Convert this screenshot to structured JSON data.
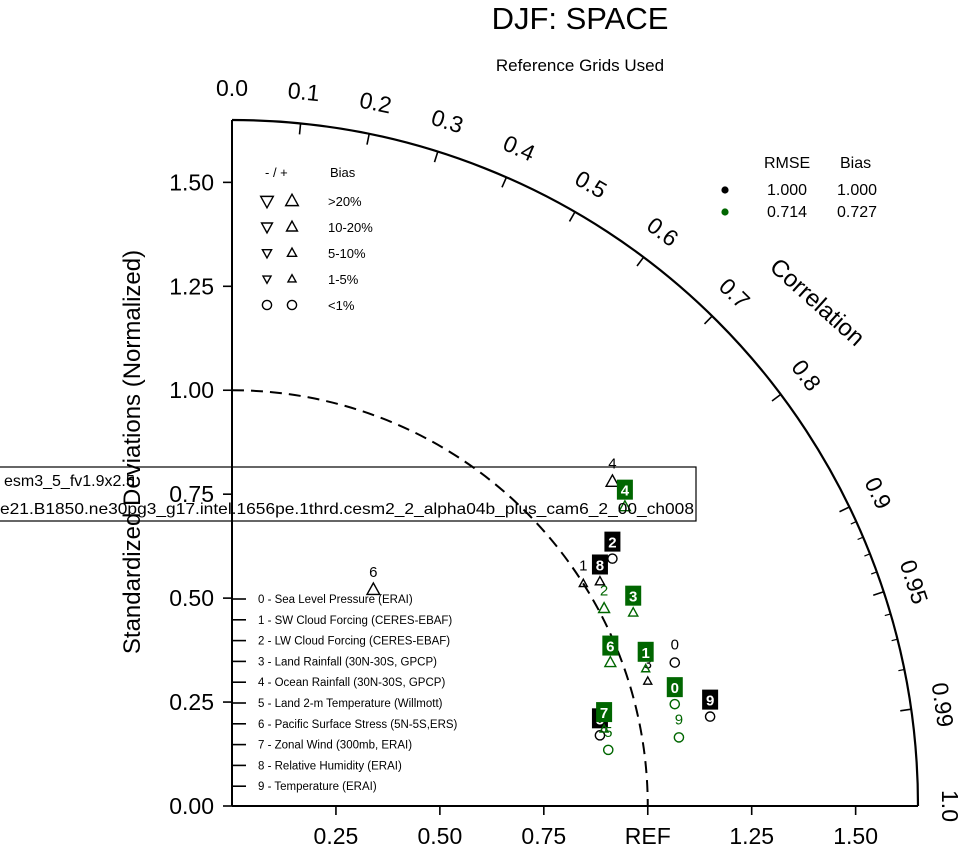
{
  "chart_data": {
    "type": "scatter",
    "title": "DJF: SPACE",
    "subtitle": "Reference Grids Used",
    "ylabel": "Standardized Deviations (Normalized)",
    "arc_label": "Correlation",
    "ref_label": "REF",
    "x_ticks": [
      "0.25",
      "0.50",
      "0.75",
      "REF",
      "1.25",
      "1.50"
    ],
    "y_ticks": [
      "0.00",
      "0.25",
      "0.50",
      "0.75",
      "1.00",
      "1.25",
      "1.50"
    ],
    "corr_ticks": [
      "0.0",
      "0.1",
      "0.2",
      "0.3",
      "0.4",
      "0.5",
      "0.6",
      "0.7",
      "0.8",
      "0.9",
      "0.95",
      "0.99",
      "1.0"
    ],
    "max_std": 1.65,
    "bias_legend": {
      "header_sign": "- / +",
      "header_bias": "Bias",
      "rows": [
        {
          "label": ">20%",
          "size": 5
        },
        {
          "label": "10-20%",
          "size": 4
        },
        {
          "label": "5-10%",
          "size": 3
        },
        {
          "label": "1-5%",
          "size": 2
        },
        {
          "label": "<1%",
          "size": 0
        }
      ]
    },
    "stats_legend": {
      "header_rmse": "RMSE",
      "header_bias": "Bias",
      "rows": [
        {
          "color": "#000000",
          "rmse": "1.000",
          "bias": "1.000"
        },
        {
          "color": "#006600",
          "rmse": "0.714",
          "bias": "0.727"
        }
      ]
    },
    "cases": [
      "esm3_5_fv1.9x2.5",
      "e21.B1850.ne30pg3_g17.intel.1656pe.1thrd.cesm2_2_alpha04b_plus_cam6_2_00_ch008"
    ],
    "variables": [
      "0 - Sea Level Pressure (ERAI)",
      "1 - SW Cloud Forcing (CERES-EBAF)",
      "2 - LW Cloud Forcing (CERES-EBAF)",
      "3 - Land Rainfall (30N-30S, GPCP)",
      "4 - Ocean Rainfall (30N-30S, GPCP)",
      "5 - Land 2-m Temperature (Willmott)",
      "6 - Pacific Surface Stress (5N-5S,ERS)",
      "7 - Zonal Wind (300mb, ERAI)",
      "8 - Relative Humidity (ERAI)",
      "9 - Temperature (ERAI)"
    ],
    "series": [
      {
        "color": "#000000",
        "points": [
          {
            "id": "0",
            "x": 1.065,
            "y": 0.345,
            "marker": "circle",
            "label_style": "text"
          },
          {
            "id": "1",
            "x": 0.845,
            "y": 0.535,
            "marker": "up",
            "size": 2,
            "label_style": "text"
          },
          {
            "id": "2",
            "x": 0.915,
            "y": 0.595,
            "marker": "circle",
            "label_style": "box"
          },
          {
            "id": "3",
            "x": 1.0,
            "y": 0.3,
            "marker": "up",
            "size": 2,
            "label_style": "text"
          },
          {
            "id": "4",
            "x": 0.915,
            "y": 0.78,
            "marker": "up",
            "size": 5,
            "label_style": "text"
          },
          {
            "id": "5",
            "x": 0.885,
            "y": 0.17,
            "marker": "circle",
            "label_style": "box"
          },
          {
            "id": "6",
            "x": 0.34,
            "y": 0.52,
            "marker": "up",
            "size": 5,
            "label_style": "text"
          },
          {
            "id": "8",
            "x": 0.885,
            "y": 0.54,
            "marker": "up",
            "size": 3,
            "label_style": "box"
          },
          {
            "id": "9",
            "x": 1.15,
            "y": 0.215,
            "marker": "circle",
            "label_style": "box"
          }
        ]
      },
      {
        "color": "#006600",
        "points": [
          {
            "id": "0",
            "x": 1.065,
            "y": 0.245,
            "marker": "circle",
            "label_style": "box"
          },
          {
            "id": "1",
            "x": 0.995,
            "y": 0.33,
            "marker": "up",
            "size": 2,
            "label_style": "box"
          },
          {
            "id": "2",
            "x": 0.895,
            "y": 0.475,
            "marker": "up",
            "size": 4,
            "label_style": "text"
          },
          {
            "id": "3",
            "x": 0.965,
            "y": 0.465,
            "marker": "up",
            "size": 3,
            "label_style": "box"
          },
          {
            "id": "4",
            "x": 0.945,
            "y": 0.72,
            "marker": "up",
            "size": 4,
            "label_style": "box"
          },
          {
            "id": "5",
            "x": 0.905,
            "y": 0.135,
            "marker": "circle",
            "label_style": "text"
          },
          {
            "id": "6",
            "x": 0.91,
            "y": 0.345,
            "marker": "up",
            "size": 4,
            "label_style": "box"
          },
          {
            "id": "7",
            "x": 0.895,
            "y": 0.185,
            "marker": "up",
            "size": 2,
            "label_style": "box"
          },
          {
            "id": "9",
            "x": 1.075,
            "y": 0.165,
            "marker": "circle",
            "label_style": "text"
          }
        ]
      }
    ]
  }
}
